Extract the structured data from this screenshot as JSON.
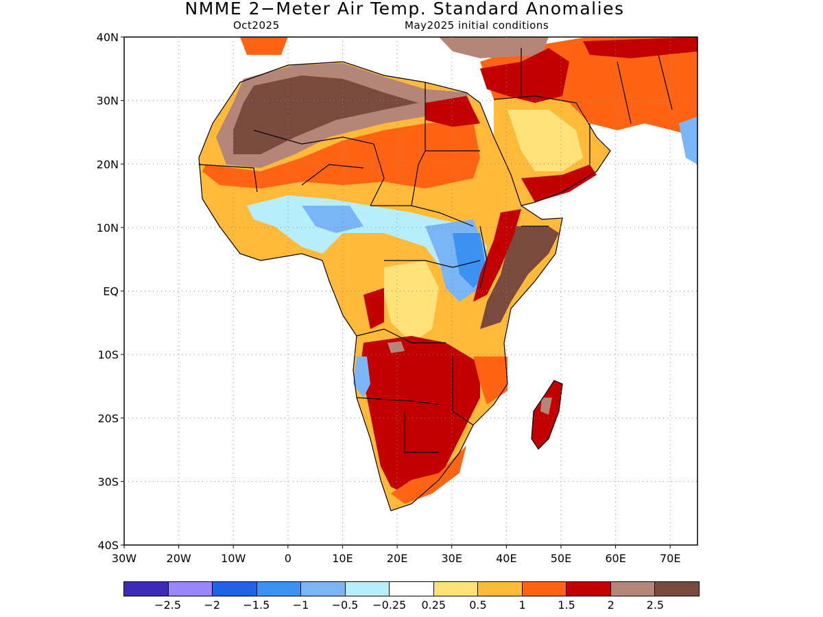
{
  "header": {
    "title": "NMME 2−Meter Air Temp. Standard Anomalies",
    "target_month": "Oct2025",
    "initial_conditions": "May2025 initial conditions"
  },
  "axes": {
    "lat_labels": [
      "40N",
      "30N",
      "20N",
      "10N",
      "EQ",
      "10S",
      "20S",
      "30S",
      "40S"
    ],
    "lon_labels": [
      "30W",
      "20W",
      "10W",
      "0",
      "10E",
      "20E",
      "30E",
      "40E",
      "50E",
      "60E",
      "70E"
    ],
    "lat_range": [
      -40,
      40
    ],
    "lon_range": [
      -30,
      75
    ],
    "grid": "dotted every 10 degrees"
  },
  "legend": {
    "colors": [
      "#3b2bb5",
      "#9a87f7",
      "#1f64e6",
      "#3b92f0",
      "#7ab6f7",
      "#b7eefb",
      "#ffffff",
      "#ffe27a",
      "#ffba3a",
      "#ff6414",
      "#c20000",
      "#b5857a",
      "#7a4a3e"
    ],
    "labels": [
      "−2.5",
      "−2",
      "−1.5",
      "−1",
      "−0.5",
      "−0.25",
      "0.25",
      "0.5",
      "1",
      "1.5",
      "2",
      "2.5"
    ]
  },
  "map_data": {
    "anomaly_regions": [
      {
        "area": "Sahara",
        "category": "2.5"
      },
      {
        "area": "Sahel band",
        "category": "1.5"
      },
      {
        "area": "Arabian Peninsula interior",
        "category": "0.5"
      },
      {
        "area": "Iran / Middle East",
        "category": "1.5"
      },
      {
        "area": "West Africa coast",
        "category": "-0.5"
      },
      {
        "area": "South Sudan / Uganda",
        "category": "-1"
      },
      {
        "area": "Horn of Africa",
        "category": "2.5"
      },
      {
        "area": "Southern Africa",
        "category": "2"
      },
      {
        "area": "Madagascar",
        "category": "2"
      },
      {
        "area": "Central Africa",
        "category": "0.5"
      }
    ]
  }
}
